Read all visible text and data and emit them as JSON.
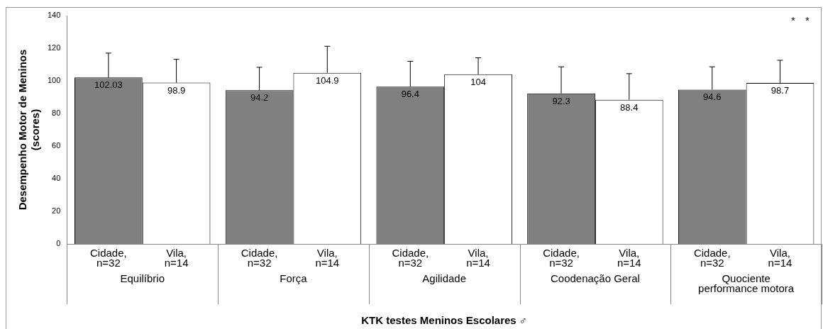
{
  "chart_data": {
    "type": "bar",
    "categories": [
      "Equilíbrio",
      "Força",
      "Agilidade",
      "Coodenação Geral",
      "Quociente performance motora"
    ],
    "series": [
      {
        "name": "Cidade, n=32",
        "color": "#808080",
        "values": [
          102.03,
          94.2,
          96.4,
          92.3,
          94.6
        ],
        "errors": [
          [
            102.03,
            117
          ],
          [
            94.2,
            108.3
          ],
          [
            96.4,
            112
          ],
          [
            92.3,
            108.6
          ],
          [
            94.6,
            108.6
          ]
        ]
      },
      {
        "name": "Vila, n=14",
        "color": "#ffffff",
        "values": [
          98.9,
          104.9,
          104,
          88.4,
          98.7
        ],
        "errors": [
          [
            98.9,
            113.2
          ],
          [
            104.9,
            121.2
          ],
          [
            104,
            114.1
          ],
          [
            88.4,
            104.4
          ],
          [
            98.7,
            112.6
          ]
        ]
      }
    ],
    "xlabel": "KTK testes Meninos Escolares ♂",
    "ylabel": "Desempenho Motor de Meninos (scores)",
    "ylim": [
      0,
      140
    ],
    "yticks": [
      0,
      20,
      40,
      60,
      80,
      100,
      120,
      140
    ],
    "grid": false,
    "legend": false,
    "data_labels": true,
    "annotations": [
      "*",
      "*"
    ]
  }
}
